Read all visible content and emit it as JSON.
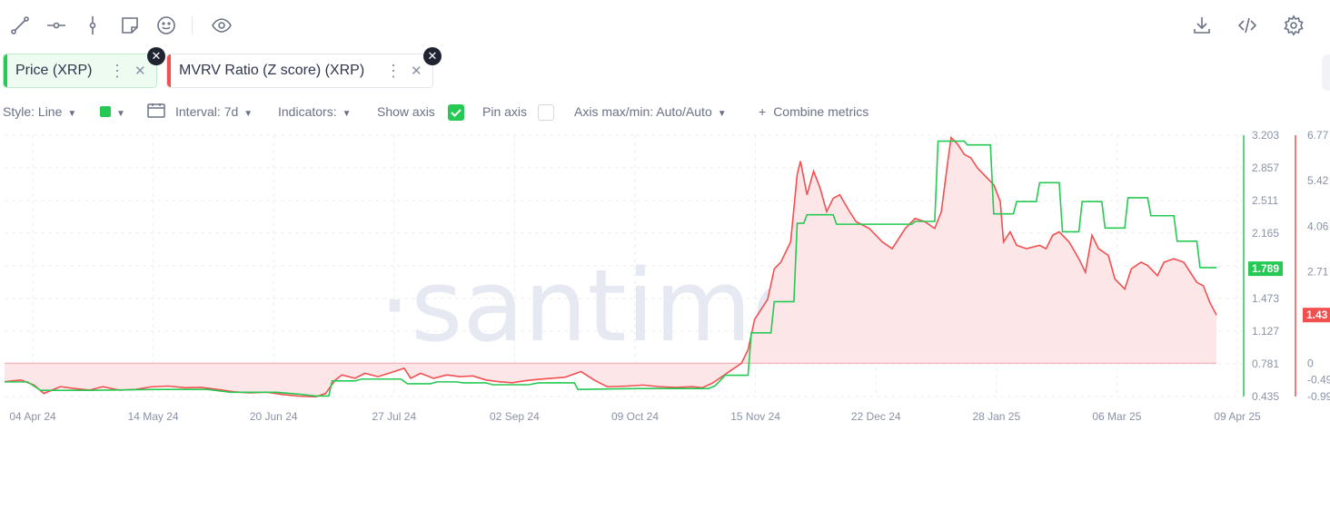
{
  "toolbar": {
    "left_icons": [
      "line-draw-icon",
      "horizontal-ray-icon",
      "vertical-line-icon",
      "note-icon",
      "emoji-icon",
      "eye-icon"
    ],
    "right_icons": [
      "download-icon",
      "embed-code-icon",
      "settings-gear-icon"
    ]
  },
  "metrics": [
    {
      "label": "Price (XRP)",
      "color": "#26c953",
      "bg": "#edfbf1"
    },
    {
      "label": "MVRV Ratio (Z score) (XRP)",
      "color": "#f24f4f",
      "bg": "#ffffff"
    }
  ],
  "settings": {
    "style": "Style: Line",
    "interval": "Interval: 7d",
    "indicators": "Indicators:",
    "show_axis": "Show axis",
    "show_axis_checked": true,
    "pin_axis": "Pin axis",
    "pin_axis_checked": false,
    "axis_maxmin": "Axis max/min: Auto/Auto",
    "combine": "Combine metrics",
    "line_color": "#26c953"
  },
  "watermark": "·santiment·",
  "chart_data": {
    "type": "line",
    "x_ticks": [
      "04 Apr 24",
      "14 May 24",
      "20 Jun 24",
      "27 Jul 24",
      "02 Sep 24",
      "09 Oct 24",
      "15 Nov 24",
      "22 Dec 24",
      "28 Jan 25",
      "06 Mar 25",
      "09 Apr 25"
    ],
    "x_range": [
      "2024-04-04",
      "2025-04-09"
    ],
    "series": [
      {
        "name": "Price (XRP)",
        "color": "#26c953",
        "axis": "right-1",
        "style": "step",
        "last_value_label": "1.789",
        "points": [
          [
            "2024-04-04",
            0.59
          ],
          [
            "2024-04-11",
            0.59
          ],
          [
            "2024-04-15",
            0.5
          ],
          [
            "2024-04-30",
            0.5
          ],
          [
            "2024-05-20",
            0.51
          ],
          [
            "2024-06-05",
            0.51
          ],
          [
            "2024-06-12",
            0.48
          ],
          [
            "2024-06-26",
            0.48
          ],
          [
            "2024-07-03",
            0.46
          ],
          [
            "2024-07-08",
            0.44
          ],
          [
            "2024-07-12",
            0.44
          ],
          [
            "2024-07-13",
            0.6
          ],
          [
            "2024-07-20",
            0.6
          ],
          [
            "2024-07-22",
            0.62
          ],
          [
            "2024-08-03",
            0.62
          ],
          [
            "2024-08-05",
            0.57
          ],
          [
            "2024-08-12",
            0.57
          ],
          [
            "2024-08-14",
            0.59
          ],
          [
            "2024-08-20",
            0.59
          ],
          [
            "2024-08-22",
            0.58
          ],
          [
            "2024-08-29",
            0.58
          ],
          [
            "2024-08-31",
            0.56
          ],
          [
            "2024-09-11",
            0.56
          ],
          [
            "2024-09-14",
            0.58
          ],
          [
            "2024-09-25",
            0.58
          ],
          [
            "2024-09-26",
            0.51
          ],
          [
            "2024-10-15",
            0.52
          ],
          [
            "2024-10-30",
            0.52
          ],
          [
            "2024-11-05",
            0.52
          ],
          [
            "2024-11-07",
            0.55
          ],
          [
            "2024-11-10",
            0.66
          ],
          [
            "2024-11-17",
            0.66
          ],
          [
            "2024-11-18",
            1.11
          ],
          [
            "2024-11-24",
            1.11
          ],
          [
            "2024-11-25",
            1.44
          ],
          [
            "2024-12-01",
            1.44
          ],
          [
            "2024-12-02",
            2.27
          ],
          [
            "2024-12-04",
            2.27
          ],
          [
            "2024-12-05",
            2.36
          ],
          [
            "2024-12-13",
            2.36
          ],
          [
            "2024-12-14",
            2.26
          ],
          [
            "2025-01-06",
            2.26
          ],
          [
            "2025-01-07",
            2.29
          ],
          [
            "2025-01-13",
            2.29
          ],
          [
            "2025-01-14",
            3.14
          ],
          [
            "2025-01-22",
            3.14
          ],
          [
            "2025-01-23",
            3.1
          ],
          [
            "2025-01-30",
            3.1
          ],
          [
            "2025-01-31",
            2.37
          ],
          [
            "2025-02-06",
            2.37
          ],
          [
            "2025-02-07",
            2.5
          ],
          [
            "2025-02-13",
            2.5
          ],
          [
            "2025-02-14",
            2.7
          ],
          [
            "2025-02-20",
            2.7
          ],
          [
            "2025-02-21",
            2.18
          ],
          [
            "2025-02-26",
            2.18
          ],
          [
            "2025-02-27",
            2.5
          ],
          [
            "2025-03-05",
            2.5
          ],
          [
            "2025-03-06",
            2.22
          ],
          [
            "2025-03-12",
            2.22
          ],
          [
            "2025-03-13",
            2.54
          ],
          [
            "2025-03-19",
            2.54
          ],
          [
            "2025-03-20",
            2.35
          ],
          [
            "2025-03-27",
            2.35
          ],
          [
            "2025-03-28",
            2.08
          ],
          [
            "2025-04-03",
            2.08
          ],
          [
            "2025-04-04",
            1.8
          ],
          [
            "2025-04-09",
            1.8
          ]
        ]
      },
      {
        "name": "MVRV Ratio (Z score) (XRP)",
        "color": "#f24f4f",
        "fill": "#fde6e8",
        "axis": "right-2",
        "style": "line",
        "last_value_label": "1.43",
        "points": [
          [
            "2024-04-04",
            -0.55
          ],
          [
            "2024-04-09",
            -0.5
          ],
          [
            "2024-04-13",
            -0.65
          ],
          [
            "2024-04-16",
            -0.9
          ],
          [
            "2024-04-21",
            -0.7
          ],
          [
            "2024-04-25",
            -0.75
          ],
          [
            "2024-04-30",
            -0.8
          ],
          [
            "2024-05-04",
            -0.7
          ],
          [
            "2024-05-09",
            -0.8
          ],
          [
            "2024-05-14",
            -0.78
          ],
          [
            "2024-05-19",
            -0.7
          ],
          [
            "2024-05-24",
            -0.68
          ],
          [
            "2024-05-29",
            -0.73
          ],
          [
            "2024-06-03",
            -0.72
          ],
          [
            "2024-06-08",
            -0.78
          ],
          [
            "2024-06-13",
            -0.85
          ],
          [
            "2024-06-18",
            -0.88
          ],
          [
            "2024-06-23",
            -0.86
          ],
          [
            "2024-06-28",
            -0.93
          ],
          [
            "2024-07-03",
            -0.98
          ],
          [
            "2024-07-08",
            -1.0
          ],
          [
            "2024-07-11",
            -0.9
          ],
          [
            "2024-07-14",
            -0.5
          ],
          [
            "2024-07-16",
            -0.35
          ],
          [
            "2024-07-20",
            -0.45
          ],
          [
            "2024-07-23",
            -0.3
          ],
          [
            "2024-07-27",
            -0.4
          ],
          [
            "2024-07-31",
            -0.28
          ],
          [
            "2024-08-04",
            -0.15
          ],
          [
            "2024-08-06",
            -0.45
          ],
          [
            "2024-08-09",
            -0.3
          ],
          [
            "2024-08-13",
            -0.45
          ],
          [
            "2024-08-17",
            -0.35
          ],
          [
            "2024-08-21",
            -0.4
          ],
          [
            "2024-08-25",
            -0.38
          ],
          [
            "2024-08-29",
            -0.5
          ],
          [
            "2024-09-02",
            -0.55
          ],
          [
            "2024-09-06",
            -0.58
          ],
          [
            "2024-09-10",
            -0.52
          ],
          [
            "2024-09-14",
            -0.48
          ],
          [
            "2024-09-18",
            -0.45
          ],
          [
            "2024-09-22",
            -0.42
          ],
          [
            "2024-09-27",
            -0.25
          ],
          [
            "2024-10-01",
            -0.5
          ],
          [
            "2024-10-05",
            -0.7
          ],
          [
            "2024-10-11",
            -0.68
          ],
          [
            "2024-10-16",
            -0.65
          ],
          [
            "2024-10-21",
            -0.7
          ],
          [
            "2024-10-26",
            -0.72
          ],
          [
            "2024-10-31",
            -0.7
          ],
          [
            "2024-11-03",
            -0.73
          ],
          [
            "2024-11-06",
            -0.6
          ],
          [
            "2024-11-09",
            -0.4
          ],
          [
            "2024-11-12",
            -0.2
          ],
          [
            "2024-11-15",
            0.0
          ],
          [
            "2024-11-17",
            0.4
          ],
          [
            "2024-11-19",
            1.3
          ],
          [
            "2024-11-21",
            1.6
          ],
          [
            "2024-11-23",
            1.9
          ],
          [
            "2024-11-25",
            2.8
          ],
          [
            "2024-11-27",
            3.0
          ],
          [
            "2024-11-30",
            3.6
          ],
          [
            "2024-12-02",
            5.6
          ],
          [
            "2024-12-03",
            6.0
          ],
          [
            "2024-12-05",
            5.0
          ],
          [
            "2024-12-07",
            5.7
          ],
          [
            "2024-12-09",
            5.2
          ],
          [
            "2024-12-11",
            4.5
          ],
          [
            "2024-12-13",
            4.9
          ],
          [
            "2024-12-15",
            5.0
          ],
          [
            "2024-12-18",
            4.5
          ],
          [
            "2024-12-20",
            4.2
          ],
          [
            "2024-12-24",
            4.0
          ],
          [
            "2024-12-28",
            3.6
          ],
          [
            "2024-12-31",
            3.4
          ],
          [
            "2025-01-04",
            4.0
          ],
          [
            "2025-01-07",
            4.3
          ],
          [
            "2025-01-10",
            4.2
          ],
          [
            "2025-01-13",
            4.0
          ],
          [
            "2025-01-15",
            4.5
          ],
          [
            "2025-01-17",
            6.0
          ],
          [
            "2025-01-18",
            6.7
          ],
          [
            "2025-01-20",
            6.5
          ],
          [
            "2025-01-22",
            6.2
          ],
          [
            "2025-01-24",
            6.1
          ],
          [
            "2025-01-26",
            5.8
          ],
          [
            "2025-01-28",
            5.6
          ],
          [
            "2025-01-31",
            5.3
          ],
          [
            "2025-02-02",
            4.8
          ],
          [
            "2025-02-03",
            3.6
          ],
          [
            "2025-02-05",
            3.9
          ],
          [
            "2025-02-07",
            3.5
          ],
          [
            "2025-02-10",
            3.4
          ],
          [
            "2025-02-14",
            3.5
          ],
          [
            "2025-02-16",
            3.4
          ],
          [
            "2025-02-18",
            3.8
          ],
          [
            "2025-02-20",
            3.9
          ],
          [
            "2025-02-23",
            3.6
          ],
          [
            "2025-02-26",
            3.1
          ],
          [
            "2025-02-28",
            2.7
          ],
          [
            "2025-03-02",
            3.8
          ],
          [
            "2025-03-04",
            3.4
          ],
          [
            "2025-03-07",
            3.2
          ],
          [
            "2025-03-09",
            2.5
          ],
          [
            "2025-03-12",
            2.2
          ],
          [
            "2025-03-14",
            2.8
          ],
          [
            "2025-03-17",
            3.0
          ],
          [
            "2025-03-19",
            2.9
          ],
          [
            "2025-03-22",
            2.6
          ],
          [
            "2025-03-24",
            3.0
          ],
          [
            "2025-03-27",
            3.1
          ],
          [
            "2025-03-30",
            3.0
          ],
          [
            "2025-04-01",
            2.7
          ],
          [
            "2025-04-03",
            2.4
          ],
          [
            "2025-04-05",
            2.3
          ],
          [
            "2025-04-07",
            1.8
          ],
          [
            "2025-04-09",
            1.43
          ]
        ]
      }
    ],
    "axis_right_1": {
      "ticks": [
        "3.203",
        "2.857",
        "2.511",
        "2.165",
        "1.819",
        "1.473",
        "1.127",
        "0.781",
        "0.435"
      ],
      "range": [
        0.435,
        3.203
      ],
      "color": "#26c953"
    },
    "axis_right_2": {
      "ticks": [
        "6.77",
        "5.42",
        "4.06",
        "2.71",
        "0",
        "-0.49",
        "-0.99"
      ],
      "range": [
        -0.99,
        6.77
      ],
      "color": "#f24f4f"
    },
    "grid": true
  }
}
